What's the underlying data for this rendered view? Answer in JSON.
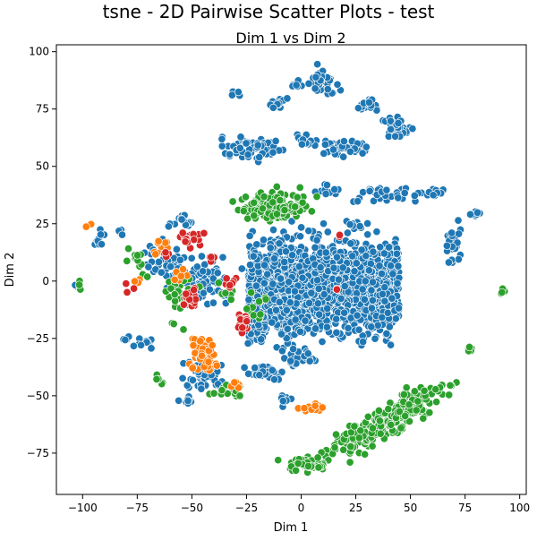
{
  "figure": {
    "suptitle": "tsne - 2D Pairwise Scatter Plots - test"
  },
  "chart_data": {
    "type": "scatter",
    "title": "Dim 1 vs Dim 2",
    "xlabel": "Dim 1",
    "ylabel": "Dim 2",
    "xlim": [
      -112,
      103
    ],
    "ylim": [
      -93,
      103
    ],
    "xticks": [
      -100,
      -75,
      -50,
      -25,
      0,
      25,
      50,
      75,
      100
    ],
    "yticks": [
      -75,
      -50,
      -25,
      0,
      25,
      50,
      75,
      100
    ],
    "grid": false,
    "legend": "none",
    "point_stroke": "#ffffff",
    "clusters": [
      {
        "color": "#1f77b4",
        "center": [
          0,
          -3
        ],
        "spread": [
          60,
          22
        ],
        "n": 1600,
        "kind": "slab"
      },
      {
        "color": "#1f77b4",
        "center": [
          10,
          86
        ],
        "spread": [
          6,
          5
        ],
        "n": 45
      },
      {
        "color": "#1f77b4",
        "center": [
          -3,
          86
        ],
        "spread": [
          2,
          1.5
        ],
        "n": 6
      },
      {
        "color": "#1f77b4",
        "center": [
          -30,
          82
        ],
        "spread": [
          1.5,
          1
        ],
        "n": 4
      },
      {
        "color": "#1f77b4",
        "center": [
          -10,
          78
        ],
        "spread": [
          4,
          2
        ],
        "n": 14
      },
      {
        "color": "#1f77b4",
        "center": [
          30,
          77
        ],
        "spread": [
          5,
          2
        ],
        "n": 22
      },
      {
        "color": "#1f77b4",
        "center": [
          43,
          67
        ],
        "spread": [
          6,
          5
        ],
        "n": 35
      },
      {
        "color": "#1f77b4",
        "center": [
          -22,
          58
        ],
        "spread": [
          12,
          4
        ],
        "n": 60
      },
      {
        "color": "#1f77b4",
        "center": [
          3,
          61
        ],
        "spread": [
          5,
          3
        ],
        "n": 15
      },
      {
        "color": "#1f77b4",
        "center": [
          20,
          58
        ],
        "spread": [
          10,
          3
        ],
        "n": 45
      },
      {
        "color": "#1f77b4",
        "center": [
          13,
          40
        ],
        "spread": [
          5,
          2
        ],
        "n": 15
      },
      {
        "color": "#1f77b4",
        "center": [
          38,
          38
        ],
        "spread": [
          14,
          3
        ],
        "n": 35
      },
      {
        "color": "#1f77b4",
        "center": [
          61,
          39
        ],
        "spread": [
          3,
          2
        ],
        "n": 10
      },
      {
        "color": "#1f77b4",
        "center": [
          80,
          29
        ],
        "spread": [
          3,
          1
        ],
        "n": 8
      },
      {
        "color": "#1f77b4",
        "center": [
          70,
          16
        ],
        "spread": [
          3,
          8
        ],
        "n": 25
      },
      {
        "color": "#1f77b4",
        "center": [
          24,
          25
        ],
        "spread": [
          4,
          2
        ],
        "n": 10
      },
      {
        "color": "#1f77b4",
        "center": [
          -20,
          -18
        ],
        "spread": [
          7,
          8
        ],
        "n": 45
      },
      {
        "color": "#1f77b4",
        "center": [
          0,
          -33
        ],
        "spread": [
          7,
          3
        ],
        "n": 25
      },
      {
        "color": "#1f77b4",
        "center": [
          -45,
          -40
        ],
        "spread": [
          8,
          6
        ],
        "n": 50
      },
      {
        "color": "#1f77b4",
        "center": [
          -17,
          -40
        ],
        "spread": [
          7,
          3
        ],
        "n": 30
      },
      {
        "color": "#1f77b4",
        "center": [
          -72,
          -27
        ],
        "spread": [
          4,
          2
        ],
        "n": 14
      },
      {
        "color": "#1f77b4",
        "center": [
          -80,
          -25
        ],
        "spread": [
          1,
          1
        ],
        "n": 5
      },
      {
        "color": "#1f77b4",
        "center": [
          -92,
          18
        ],
        "spread": [
          2,
          3
        ],
        "n": 10
      },
      {
        "color": "#1f77b4",
        "center": [
          -84,
          22
        ],
        "spread": [
          1.5,
          1
        ],
        "n": 4
      },
      {
        "color": "#1f77b4",
        "center": [
          -55,
          26
        ],
        "spread": [
          4,
          3
        ],
        "n": 14
      },
      {
        "color": "#1f77b4",
        "center": [
          -45,
          0
        ],
        "spread": [
          12,
          8
        ],
        "n": 70
      },
      {
        "color": "#1f77b4",
        "center": [
          -102,
          -2
        ],
        "spread": [
          1.5,
          1
        ],
        "n": 4
      },
      {
        "color": "#1f77b4",
        "center": [
          -8,
          -52
        ],
        "spread": [
          2,
          2
        ],
        "n": 8
      },
      {
        "color": "#1f77b4",
        "center": [
          10,
          8
        ],
        "spread": [
          8,
          5
        ],
        "n": 40
      },
      {
        "color": "#1f77b4",
        "center": [
          -62,
          8
        ],
        "spread": [
          8,
          8
        ],
        "n": 40
      },
      {
        "color": "#1f77b4",
        "center": [
          -52,
          -52
        ],
        "spread": [
          3,
          1.5
        ],
        "n": 8
      },
      {
        "color": "#2ca02c",
        "center": [
          -12,
          33
        ],
        "spread": [
          12,
          5
        ],
        "n": 140
      },
      {
        "color": "#2ca02c",
        "center": [
          40,
          -60
        ],
        "spread": [
          14,
          6
        ],
        "n": 260,
        "kind": "band"
      },
      {
        "color": "#2ca02c",
        "center": [
          2,
          -80
        ],
        "spread": [
          8,
          2
        ],
        "n": 50
      },
      {
        "color": "#2ca02c",
        "center": [
          -55,
          -8
        ],
        "spread": [
          6,
          10
        ],
        "n": 30
      },
      {
        "color": "#2ca02c",
        "center": [
          -75,
          8
        ],
        "spread": [
          5,
          6
        ],
        "n": 12
      },
      {
        "color": "#2ca02c",
        "center": [
          -66,
          -43
        ],
        "spread": [
          2,
          2
        ],
        "n": 6
      },
      {
        "color": "#2ca02c",
        "center": [
          -33,
          -47
        ],
        "spread": [
          6,
          3
        ],
        "n": 16
      },
      {
        "color": "#2ca02c",
        "center": [
          92,
          -4
        ],
        "spread": [
          1,
          1
        ],
        "n": 4
      },
      {
        "color": "#2ca02c",
        "center": [
          -101,
          -2
        ],
        "spread": [
          1,
          2
        ],
        "n": 3
      },
      {
        "color": "#2ca02c",
        "center": [
          77,
          -29
        ],
        "spread": [
          1.5,
          2
        ],
        "n": 5
      },
      {
        "color": "#2ca02c",
        "center": [
          -20,
          -10
        ],
        "spread": [
          4,
          6
        ],
        "n": 10
      },
      {
        "color": "#2ca02c",
        "center": [
          -35,
          -5
        ],
        "spread": [
          3,
          3
        ],
        "n": 6
      },
      {
        "color": "#ff7f0e",
        "center": [
          -45,
          -32
        ],
        "spread": [
          5,
          6
        ],
        "n": 55
      },
      {
        "color": "#ff7f0e",
        "center": [
          5,
          -55
        ],
        "spread": [
          4,
          1.5
        ],
        "n": 14
      },
      {
        "color": "#ff7f0e",
        "center": [
          -64,
          15
        ],
        "spread": [
          3,
          3
        ],
        "n": 12
      },
      {
        "color": "#ff7f0e",
        "center": [
          -75,
          0
        ],
        "spread": [
          2,
          2
        ],
        "n": 4
      },
      {
        "color": "#ff7f0e",
        "center": [
          -56,
          2
        ],
        "spread": [
          3,
          3
        ],
        "n": 8
      },
      {
        "color": "#ff7f0e",
        "center": [
          -97,
          24
        ],
        "spread": [
          1,
          1
        ],
        "n": 2
      },
      {
        "color": "#ff7f0e",
        "center": [
          -30,
          -45
        ],
        "spread": [
          2,
          2
        ],
        "n": 5
      },
      {
        "color": "#d62728",
        "center": [
          -50,
          18
        ],
        "spread": [
          4,
          3
        ],
        "n": 20
      },
      {
        "color": "#d62728",
        "center": [
          -50,
          -8
        ],
        "spread": [
          4,
          4
        ],
        "n": 18
      },
      {
        "color": "#d62728",
        "center": [
          -28,
          -18
        ],
        "spread": [
          4,
          4
        ],
        "n": 14
      },
      {
        "color": "#d62728",
        "center": [
          -32,
          0
        ],
        "spread": [
          3,
          3
        ],
        "n": 8
      },
      {
        "color": "#d62728",
        "center": [
          -62,
          12
        ],
        "spread": [
          2,
          2
        ],
        "n": 4
      },
      {
        "color": "#d62728",
        "center": [
          -78,
          -3
        ],
        "spread": [
          2,
          2
        ],
        "n": 3
      },
      {
        "color": "#d62728",
        "center": [
          16,
          -3
        ],
        "spread": [
          1,
          1
        ],
        "n": 2
      },
      {
        "color": "#d62728",
        "center": [
          18,
          20
        ],
        "spread": [
          1,
          1
        ],
        "n": 2
      },
      {
        "color": "#d62728",
        "center": [
          -40,
          10
        ],
        "spread": [
          2,
          2
        ],
        "n": 4
      }
    ]
  }
}
